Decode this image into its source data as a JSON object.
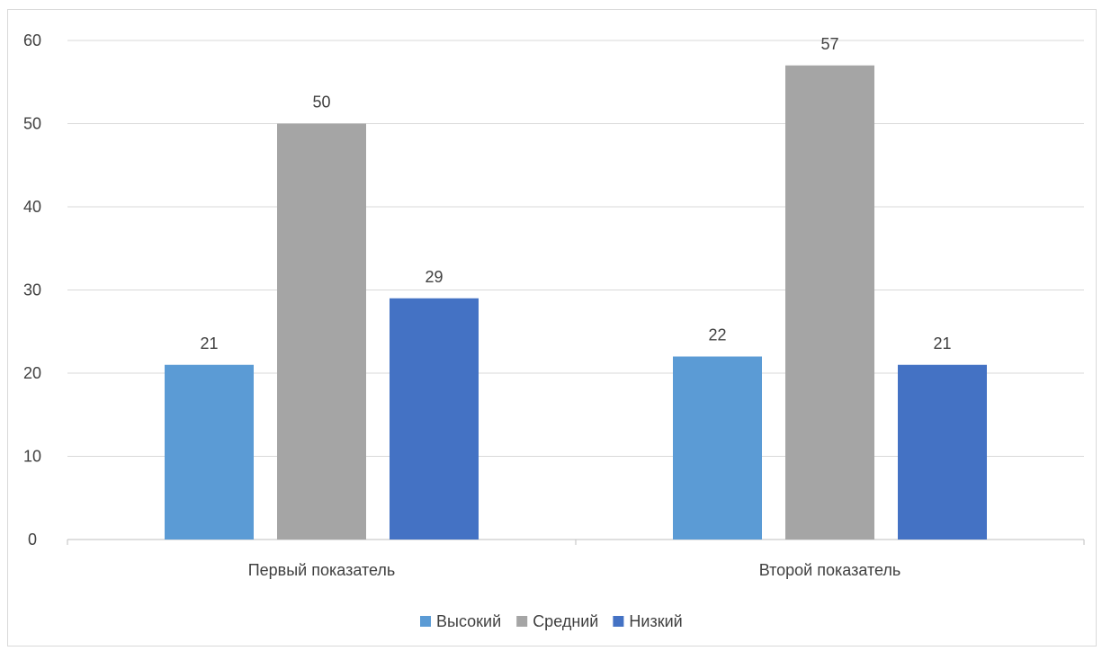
{
  "chart_data": {
    "type": "bar",
    "title": "",
    "xlabel": "",
    "ylabel": "",
    "categories": [
      "Первый показатель",
      "Второй показатель"
    ],
    "series": [
      {
        "name": "Высокий",
        "values": [
          21,
          22
        ],
        "color": "#5b9bd5"
      },
      {
        "name": "Средний",
        "values": [
          50,
          57
        ],
        "color": "#a5a5a5"
      },
      {
        "name": "Низкий",
        "values": [
          29,
          21
        ],
        "color": "#4472c4"
      }
    ],
    "ylim": [
      0,
      60
    ],
    "yticks": [
      "0",
      "10",
      "20",
      "30",
      "40",
      "50",
      "60"
    ],
    "grid": true,
    "data_labels": true,
    "legend_position": "bottom"
  }
}
